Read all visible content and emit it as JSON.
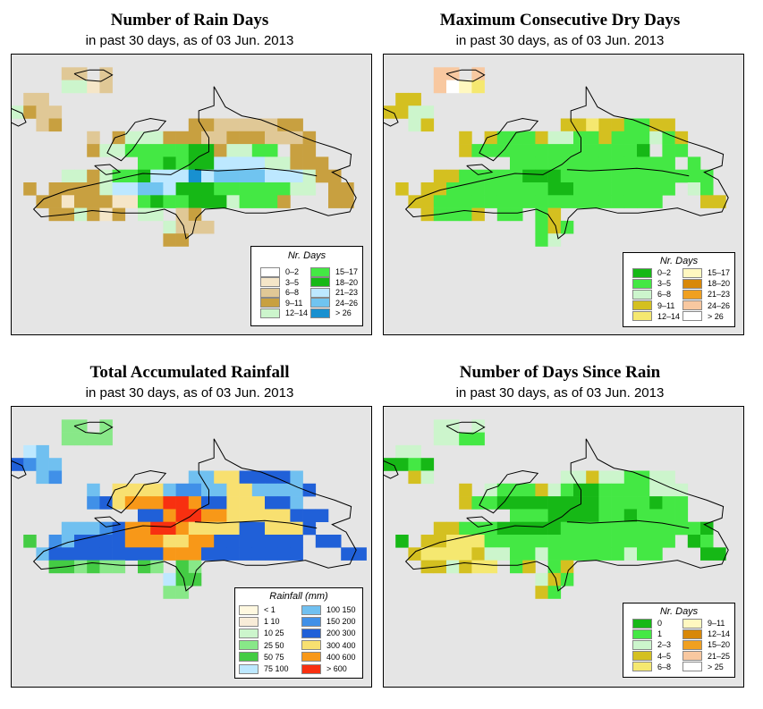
{
  "colors": {
    "frame_bg": "#e5e5e5",
    "coast": "#000000"
  },
  "panels": [
    {
      "id": "rain-days",
      "title": "Number of Rain Days",
      "subtitle": "in past 30 days, as of  03 Jun. 2013",
      "legend": {
        "title": "Nr. Days",
        "items": [
          {
            "label": "0–2",
            "color": "#ffffff"
          },
          {
            "label": "3–5",
            "color": "#f5e6c8"
          },
          {
            "label": "6–8",
            "color": "#e0c896"
          },
          {
            "label": "9–11",
            "color": "#c8a040"
          },
          {
            "label": "12–14",
            "color": "#ccf5cc"
          },
          {
            "label": "15–17",
            "color": "#44e844"
          },
          {
            "label": "18–20",
            "color": "#16b816"
          },
          {
            "label": "21–23",
            "color": "#bde8ff"
          },
          {
            "label": "24–26",
            "color": "#70c4f0"
          },
          {
            "label": "> 26",
            "color": "#1890d0"
          }
        ]
      }
    },
    {
      "id": "max-dry-days",
      "title": "Maximum Consecutive Dry Days",
      "subtitle": "in past 30 days, as of  03 Jun. 2013",
      "legend": {
        "title": "Nr. Days",
        "items": [
          {
            "label": "0–2",
            "color": "#16b816"
          },
          {
            "label": "3–5",
            "color": "#44e844"
          },
          {
            "label": "6–8",
            "color": "#ccf5cc"
          },
          {
            "label": "9–11",
            "color": "#d4c020"
          },
          {
            "label": "12–14",
            "color": "#f5e870"
          },
          {
            "label": "15–17",
            "color": "#fff8c0"
          },
          {
            "label": "18–20",
            "color": "#d88808"
          },
          {
            "label": "21–23",
            "color": "#f0a020"
          },
          {
            "label": "24–26",
            "color": "#f8c8a0"
          },
          {
            "label": "> 26",
            "color": "#ffffff"
          }
        ]
      }
    },
    {
      "id": "total-rainfall",
      "title": "Total Accumulated Rainfall",
      "subtitle": "in past 30 days, as of  03 Jun. 2013",
      "legend": {
        "title": "Rainfall (mm)",
        "items": [
          {
            "label": "< 1",
            "color": "#fff8e0"
          },
          {
            "label": "1  10",
            "color": "#f8ecd8"
          },
          {
            "label": "10  25",
            "color": "#ccf5cc"
          },
          {
            "label": "25  50",
            "color": "#88e888"
          },
          {
            "label": "50  75",
            "color": "#44cc44"
          },
          {
            "label": "75  100",
            "color": "#bde8ff"
          },
          {
            "label": "100  150",
            "color": "#70c0f0"
          },
          {
            "label": "150  200",
            "color": "#4090e8"
          },
          {
            "label": "200  300",
            "color": "#2060d8"
          },
          {
            "label": "300  400",
            "color": "#f8e070"
          },
          {
            "label": "400  600",
            "color": "#f89818"
          },
          {
            "label": "> 600",
            "color": "#f83010"
          }
        ]
      }
    },
    {
      "id": "days-since-rain",
      "title": "Number of Days Since Rain",
      "subtitle": "in past 30 days, as of  03 Jun. 2013",
      "legend": {
        "title": "Nr. Days",
        "items": [
          {
            "label": "0",
            "color": "#16b816"
          },
          {
            "label": "1",
            "color": "#44e844"
          },
          {
            "label": "2–3",
            "color": "#ccf5cc"
          },
          {
            "label": "4–5",
            "color": "#d4c020"
          },
          {
            "label": "6–8",
            "color": "#f5e870"
          },
          {
            "label": "9–11",
            "color": "#fff8c0"
          },
          {
            "label": "12–14",
            "color": "#d88808"
          },
          {
            "label": "15–20",
            "color": "#f0a020"
          },
          {
            "label": "21–25",
            "color": "#f8c8a0"
          },
          {
            "label": "> 25",
            "color": "#ffffff"
          }
        ]
      }
    }
  ]
}
